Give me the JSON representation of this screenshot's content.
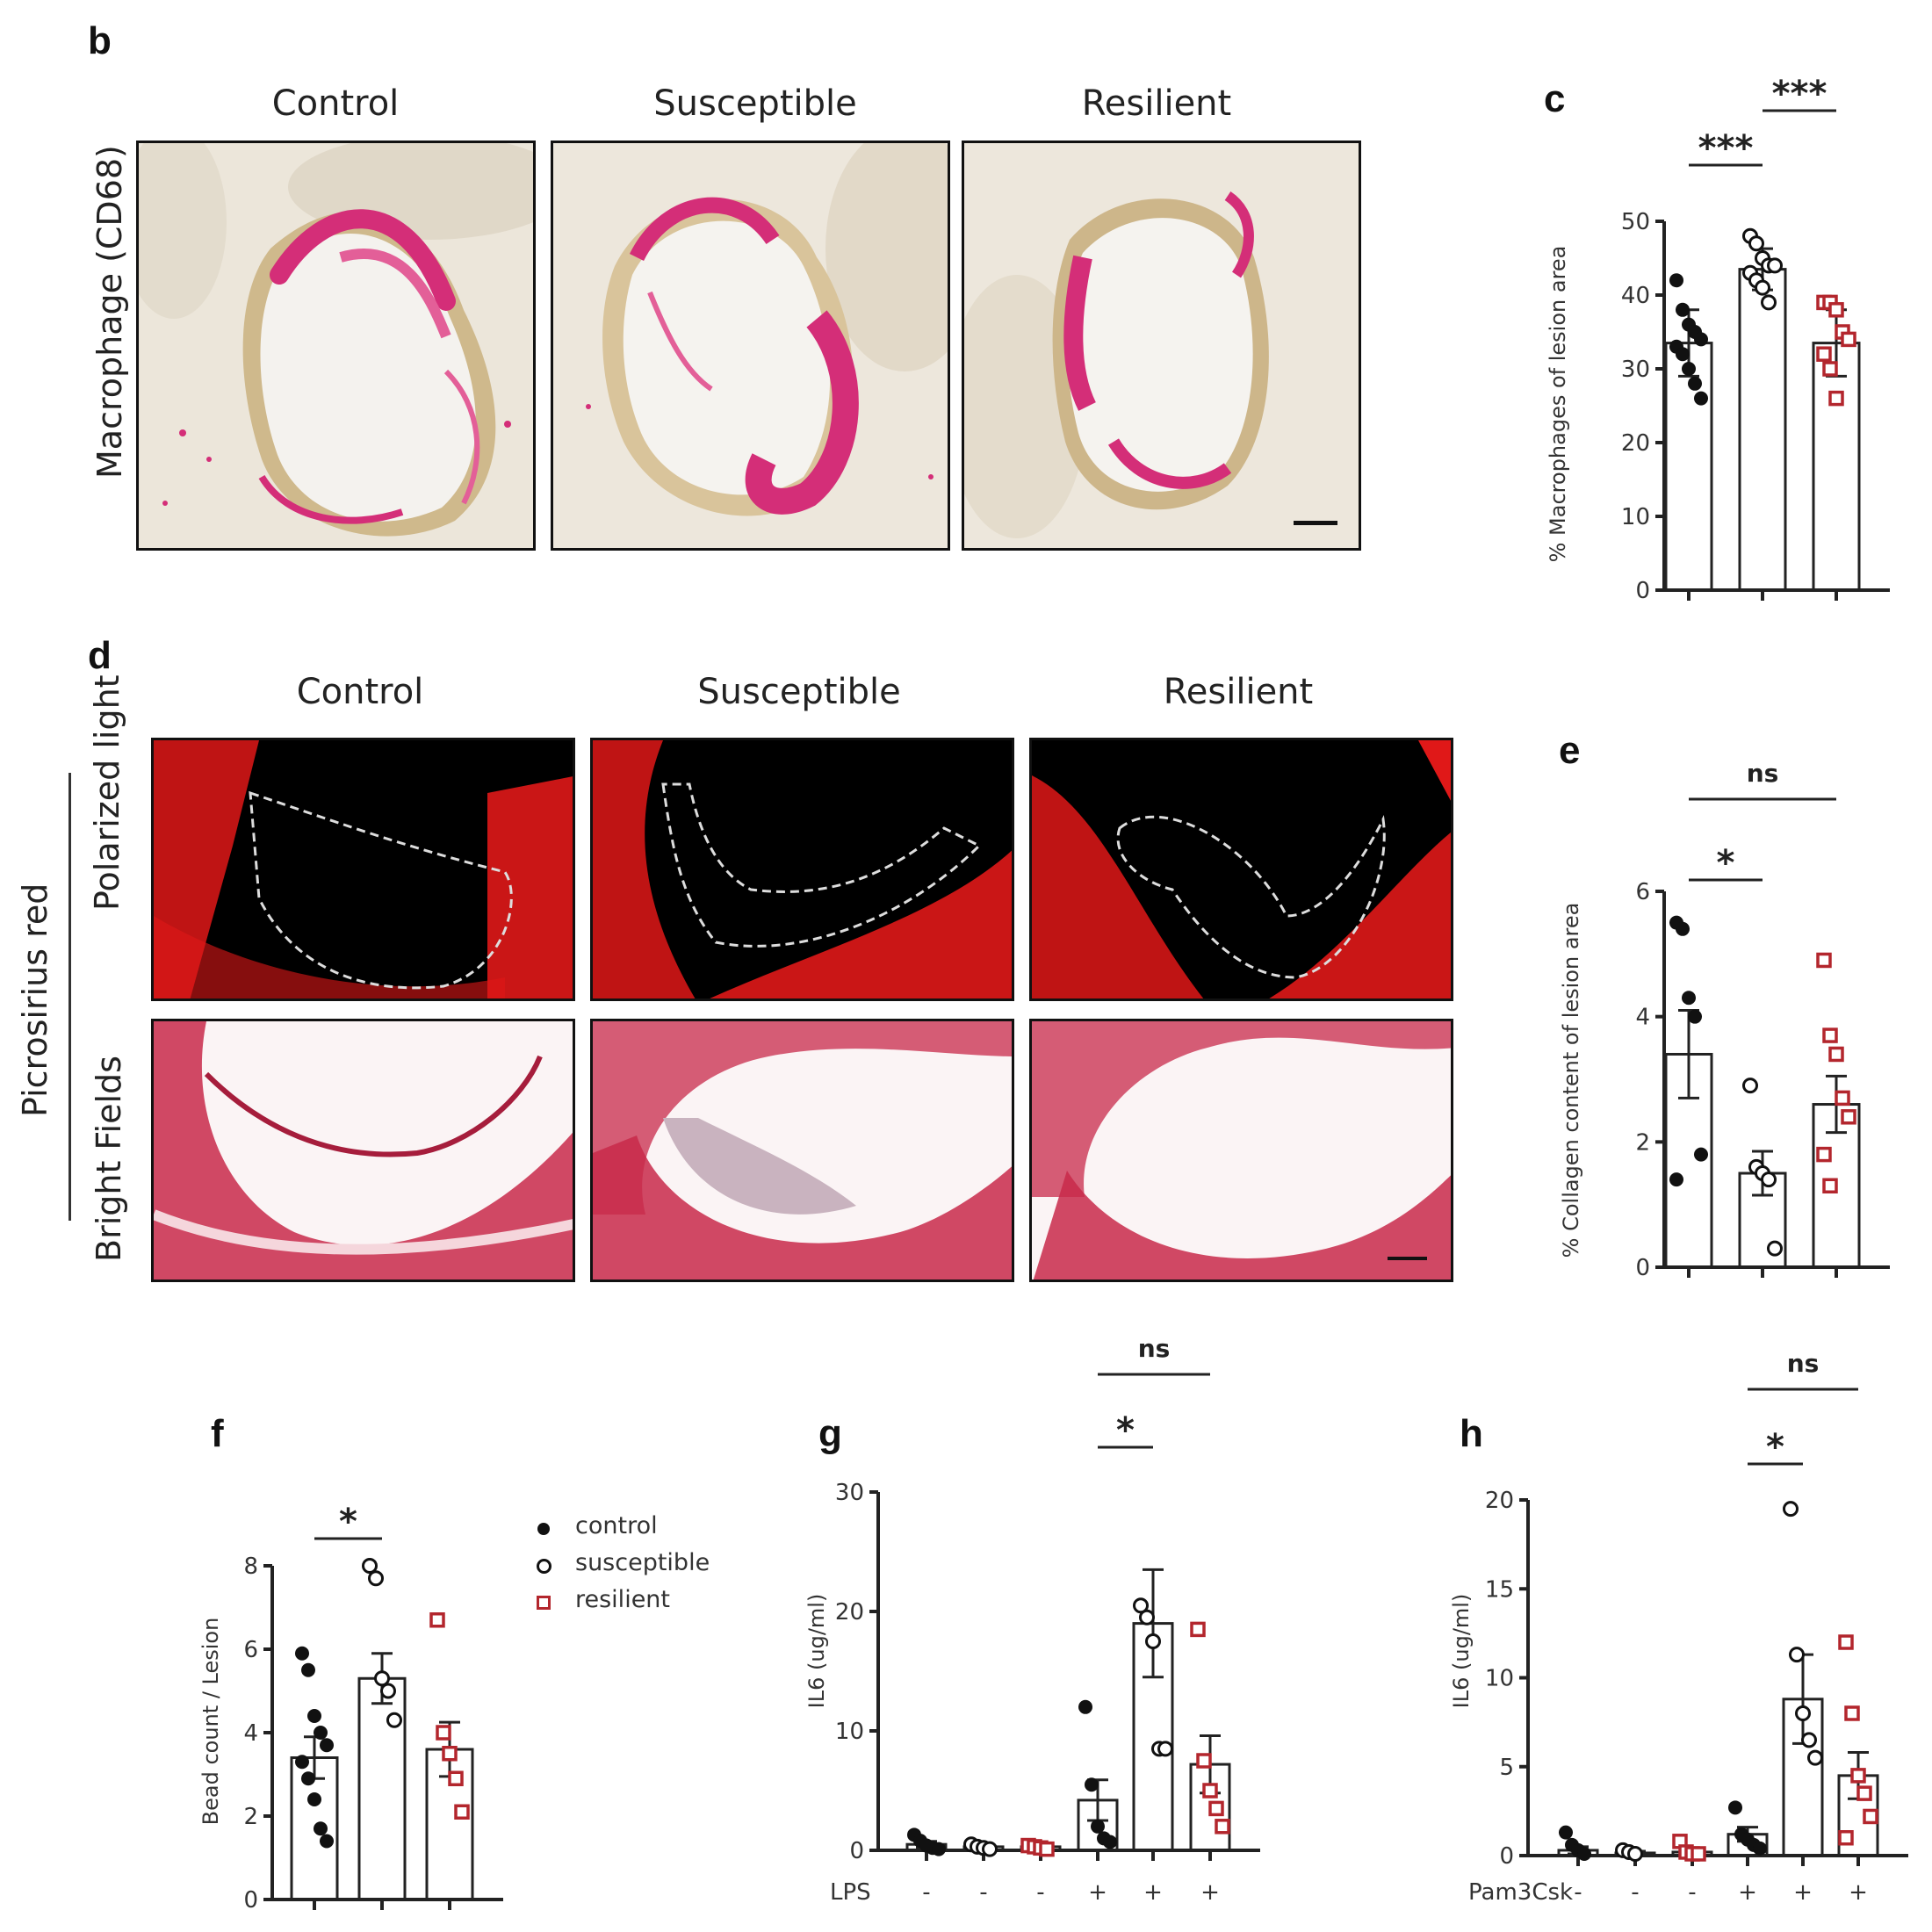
{
  "panels": {
    "b": "b",
    "c": "c",
    "d": "d",
    "e": "e",
    "f": "f",
    "g": "g",
    "h": "h"
  },
  "groups": {
    "control": "Control",
    "susceptible": "Susceptible",
    "resilient": "Resilient"
  },
  "row_labels": {
    "macrophage": "Macrophage (CD68)",
    "picrosirius": "Picrosirius red",
    "polarized": "Polarized light",
    "bright": "Bright Fields"
  },
  "legend": {
    "control": "control",
    "susceptible": "susceptible",
    "resilient": "resilient"
  },
  "colors": {
    "control": "#111111",
    "susceptible": "#111111",
    "resilient": "#b3262d",
    "pink_stain": "#d42e78",
    "red_stain": "#e01818"
  },
  "chart_data": [
    {
      "id": "c",
      "type": "bar",
      "ylabel": "% Macrophages of lesion area",
      "ylim": [
        0,
        50
      ],
      "yticks": [
        0,
        10,
        20,
        30,
        40,
        50
      ],
      "categories": [
        "control",
        "susceptible",
        "resilient"
      ],
      "series": [
        {
          "name": "control",
          "mean": 33.5,
          "err": 4.5,
          "points": [
            42,
            38,
            36,
            35,
            34,
            33,
            32,
            30,
            28,
            26
          ]
        },
        {
          "name": "susceptible",
          "mean": 43.5,
          "err": 2.8,
          "points": [
            48,
            47,
            45,
            44,
            44,
            43,
            42,
            41,
            39
          ]
        },
        {
          "name": "resilient",
          "mean": 33.5,
          "err": 4.5,
          "points": [
            39,
            39,
            38,
            35,
            34,
            32,
            30,
            26
          ]
        }
      ],
      "sig": [
        {
          "pair": [
            0,
            1
          ],
          "label": "***"
        },
        {
          "pair": [
            1,
            2
          ],
          "label": "***"
        }
      ]
    },
    {
      "id": "e",
      "type": "bar",
      "ylabel": "% Collagen content of lesion area",
      "ylim": [
        0,
        6
      ],
      "yticks": [
        0,
        2,
        4,
        6
      ],
      "categories": [
        "control",
        "susceptible",
        "resilient"
      ],
      "series": [
        {
          "name": "control",
          "mean": 3.4,
          "err": 0.7,
          "points": [
            5.5,
            5.4,
            4.3,
            4.0,
            1.8,
            1.4
          ]
        },
        {
          "name": "susceptible",
          "mean": 1.5,
          "err": 0.35,
          "points": [
            2.9,
            1.6,
            1.5,
            1.4,
            0.3
          ]
        },
        {
          "name": "resilient",
          "mean": 2.6,
          "err": 0.45,
          "points": [
            4.9,
            3.7,
            3.4,
            2.7,
            2.4,
            1.8,
            1.3
          ]
        }
      ],
      "sig": [
        {
          "pair": [
            0,
            1
          ],
          "label": "*"
        },
        {
          "pair": [
            0,
            2
          ],
          "label": "ns"
        }
      ]
    },
    {
      "id": "f",
      "type": "bar",
      "ylabel": "Bead count / Lesion",
      "ylim": [
        0,
        8
      ],
      "yticks": [
        0,
        2,
        4,
        6,
        8
      ],
      "categories": [
        "control",
        "susceptible",
        "resilient"
      ],
      "series": [
        {
          "name": "control",
          "mean": 3.4,
          "err": 0.5,
          "points": [
            5.9,
            5.5,
            4.4,
            4.0,
            3.7,
            3.3,
            2.9,
            2.4,
            1.7,
            1.4
          ]
        },
        {
          "name": "susceptible",
          "mean": 5.3,
          "err": 0.6,
          "points": [
            8.0,
            7.7,
            5.3,
            5.0,
            4.3
          ]
        },
        {
          "name": "resilient",
          "mean": 3.6,
          "err": 0.65,
          "points": [
            6.7,
            4.0,
            3.5,
            2.9,
            2.1
          ]
        }
      ],
      "sig": [
        {
          "pair": [
            0,
            1
          ],
          "label": "*"
        }
      ]
    },
    {
      "id": "g",
      "type": "bar",
      "ylabel": "IL6 (ug/ml)",
      "treatment": "LPS",
      "ylim": [
        0,
        30
      ],
      "yticks": [
        0,
        10,
        20,
        30
      ],
      "categories": [
        "-",
        "-",
        "-",
        "+",
        "+",
        "+"
      ],
      "series": [
        {
          "name": "control",
          "mean": 0.5,
          "err": 0.25,
          "points": [
            1.3,
            0.8,
            0.4,
            0.2,
            0.1
          ]
        },
        {
          "name": "susceptible",
          "mean": 0.3,
          "err": 0.15,
          "points": [
            0.5,
            0.3,
            0.2,
            0.1
          ]
        },
        {
          "name": "resilient",
          "mean": 0.3,
          "err": 0.1,
          "points": [
            0.4,
            0.3,
            0.2,
            0.1
          ]
        },
        {
          "name": "control",
          "mean": 4.2,
          "err": 1.7,
          "points": [
            12,
            5.5,
            2.0,
            1.0,
            0.7
          ]
        },
        {
          "name": "susceptible",
          "mean": 19,
          "err": 4.5,
          "points": [
            20.5,
            19.5,
            17.5,
            8.5,
            8.5
          ]
        },
        {
          "name": "resilient",
          "mean": 7.2,
          "err": 2.4,
          "points": [
            18.5,
            7.5,
            5.0,
            3.5,
            2.0
          ]
        }
      ],
      "sig": [
        {
          "pair": [
            3,
            4
          ],
          "label": "*"
        },
        {
          "pair": [
            3,
            5
          ],
          "label": "ns"
        }
      ]
    },
    {
      "id": "h",
      "type": "bar",
      "ylabel": "IL6 (ug/ml)",
      "treatment": "Pam3Csk",
      "ylim": [
        0,
        20
      ],
      "yticks": [
        0,
        5,
        10,
        15,
        20
      ],
      "categories": [
        "-",
        "-",
        "-",
        "+",
        "+",
        "+"
      ],
      "series": [
        {
          "name": "control",
          "mean": 0.3,
          "err": 0.2,
          "points": [
            1.3,
            0.6,
            0.3,
            0.1
          ]
        },
        {
          "name": "susceptible",
          "mean": 0.15,
          "err": 0.1,
          "points": [
            0.3,
            0.2,
            0.1
          ]
        },
        {
          "name": "resilient",
          "mean": 0.2,
          "err": 0.1,
          "points": [
            0.8,
            0.2,
            0.1,
            0.1
          ]
        },
        {
          "name": "control",
          "mean": 1.2,
          "err": 0.4,
          "points": [
            2.7,
            1.2,
            0.9,
            0.6,
            0.4
          ]
        },
        {
          "name": "susceptible",
          "mean": 8.8,
          "err": 2.5,
          "points": [
            19.5,
            11.3,
            8.0,
            6.5,
            5.5
          ]
        },
        {
          "name": "resilient",
          "mean": 4.5,
          "err": 1.3,
          "points": [
            12,
            8.0,
            4.5,
            3.5,
            2.2,
            1.0
          ]
        }
      ],
      "sig": [
        {
          "pair": [
            3,
            4
          ],
          "label": "*"
        },
        {
          "pair": [
            3,
            5
          ],
          "label": "ns"
        }
      ]
    }
  ]
}
